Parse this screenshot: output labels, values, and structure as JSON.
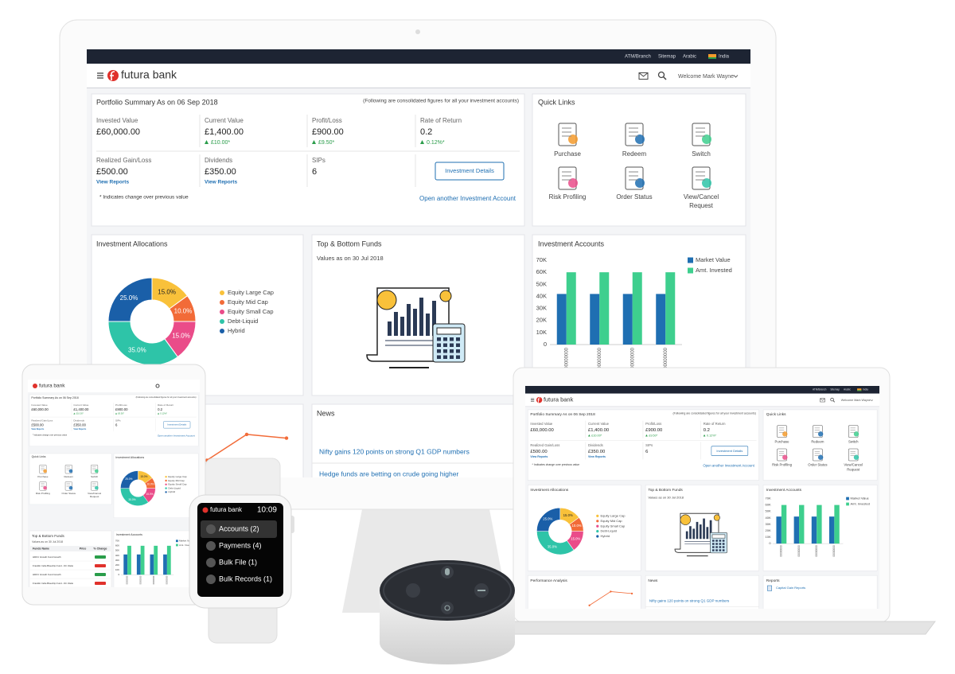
{
  "top_bar": {
    "links": [
      "ATM/Branch",
      "Sitemap",
      "Arabic",
      "India"
    ]
  },
  "header": {
    "brand": "futura bank",
    "welcome": "Welcome Mark Wayne"
  },
  "portfolio": {
    "title": "Portfolio Summary As on 06 Sep 2018",
    "note": "(Following are consolidated figures for all your investment accounts)",
    "rows": [
      [
        {
          "label": "Invested Value",
          "value": "£60,000.00"
        },
        {
          "label": "Current Value",
          "value": "£1,400.00",
          "change": "£10.00*"
        },
        {
          "label": "Profit/Loss",
          "value": "£900.00",
          "change": "£9.50*"
        },
        {
          "label": "Rate of Return",
          "value": "0.2",
          "change": "0.12%*"
        }
      ],
      [
        {
          "label": "Realized Gain/Loss",
          "value": "£500.00",
          "link": "View Reports"
        },
        {
          "label": "Dividends",
          "value": "£350.00",
          "link": "View Reports"
        },
        {
          "label": "SIPs",
          "value": "6"
        }
      ]
    ],
    "button": "Investment Details",
    "footnote": "* Indicates change over previous value",
    "link": "Open another Investment Account"
  },
  "quick_links": {
    "title": "Quick Links",
    "items": [
      [
        "Purchase"
      ],
      [
        "Redeem"
      ],
      [
        "Switch"
      ],
      [
        "Risk Profiling"
      ],
      [
        "Order Status"
      ],
      [
        "View/Cancel",
        "Request"
      ]
    ]
  },
  "funds": {
    "title": "Top & Bottom Funds",
    "subtitle": "Values as on 30 Jul 2018",
    "table": {
      "columns": [
        "Funds Name",
        "Price",
        "% Change"
      ],
      "rows": [
        "HDFC Growth Fund Growth",
        "Franklin India Bluechip Fund - Dir. Ratio",
        "HDFC Growth Fund Growth",
        "Franklin India Bluechip Fund - Dir. Ratio"
      ]
    }
  },
  "news": {
    "title": "News",
    "items": [
      "Nifty gains 120 points on strong Q1 GDP numbers",
      "Hedge funds are betting on crude going higher"
    ]
  },
  "reports": {
    "title": "Reports",
    "items": [
      "Capital Gain Reports"
    ]
  },
  "watch": {
    "brand": "futura bank",
    "time": "10:09",
    "menu": [
      "Accounts (2)",
      "Payments (4)",
      "Bulk File (1)",
      "Bulk Records (1)"
    ]
  },
  "chart_data": [
    {
      "type": "pie",
      "title": "Investment Allocations",
      "categories": [
        "Equity Large Cap",
        "Equity Mid Cap",
        "Equity Small Cap",
        "Debt-Liquid",
        "Hybrid"
      ],
      "values": [
        15,
        10,
        15,
        35,
        25
      ],
      "value_labels": [
        "15.0%",
        "10.0%",
        "15.0%",
        "35.0%",
        "25.0%"
      ],
      "colors": [
        "#f9c13a",
        "#f26b38",
        "#ea4c89",
        "#2ec4a8",
        "#1a5fa8"
      ],
      "legend": "right"
    },
    {
      "type": "bar",
      "title": "Investment Accounts",
      "categories": [
        "00000000",
        "00000000",
        "00000000",
        "00000000"
      ],
      "series": [
        {
          "name": "Market Value",
          "color": "#1f6fb2",
          "values": [
            42000,
            42000,
            42000,
            42000
          ]
        },
        {
          "name": "Amt. Invested",
          "color": "#3ecf8e",
          "values": [
            60000,
            60000,
            60000,
            60000
          ]
        }
      ],
      "ylim": [
        0,
        70000
      ],
      "yticks": [
        0,
        {
          "value": 10000,
          "label": "10K"
        },
        {
          "value": 20000,
          "label": "20K"
        },
        {
          "value": 30000,
          "label": "30K"
        },
        {
          "value": 40000,
          "label": "40K"
        },
        {
          "value": 50000,
          "label": "50K"
        },
        {
          "value": 60000,
          "label": "60K"
        },
        {
          "value": 70000,
          "label": "70K"
        }
      ],
      "grid": false,
      "legend": "right"
    },
    {
      "type": "line",
      "title": "Performance Analysis",
      "values": [
        20,
        55,
        50
      ],
      "color": "#f26b38",
      "ylim": [
        0,
        70
      ]
    }
  ]
}
